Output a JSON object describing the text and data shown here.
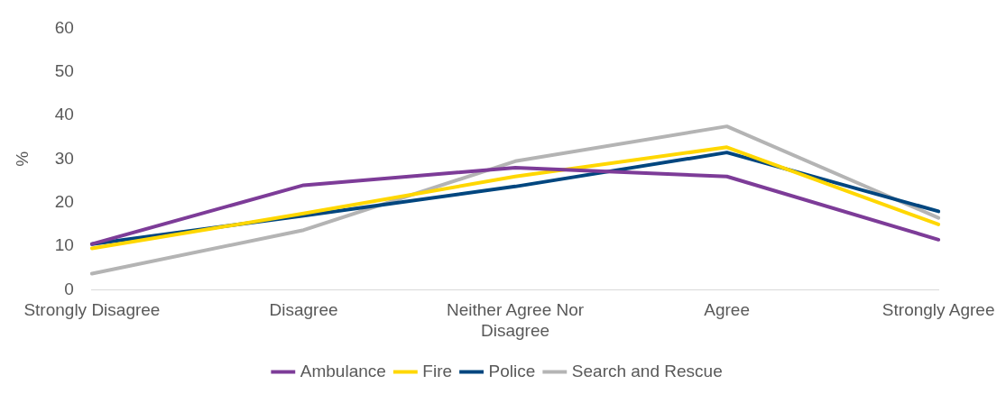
{
  "chart_data": {
    "type": "line",
    "ylabel": "%",
    "categories": [
      "Strongly Disagree",
      "Disagree",
      "Neither Agree Nor Disagree",
      "Agree",
      "Strongly Agree"
    ],
    "series": [
      {
        "name": "Ambulance",
        "color": "#7d3c98",
        "values": [
          10.5,
          24,
          28,
          26,
          11.5
        ]
      },
      {
        "name": "Fire",
        "color": "#ffd700",
        "values": [
          9.5,
          17.5,
          26,
          32.7,
          15
        ]
      },
      {
        "name": "Police",
        "color": "#00467f",
        "values": [
          10.5,
          17,
          23.7,
          31.5,
          18
        ]
      },
      {
        "name": "Search and Rescue",
        "color": "#b4b4b4",
        "values": [
          3.7,
          13.7,
          29.5,
          37.5,
          16.5
        ]
      }
    ],
    "ylim": [
      0,
      60
    ],
    "yticks": [
      0,
      10,
      20,
      30,
      40,
      50,
      60
    ],
    "grid": false,
    "legend": "bottom",
    "marker": "none",
    "line_style": "solid"
  }
}
